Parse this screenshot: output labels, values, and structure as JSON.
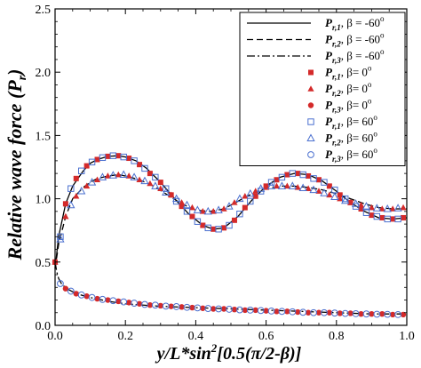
{
  "chart_data": {
    "type": "line",
    "xlabel": "y/L*sin",
    "xlabel_sup": "2",
    "xlabel_rest": "[0.5(π/2-β)]",
    "ylabel": "Relative wave force (P",
    "ylabel_sub": "r",
    "ylabel_end": ")",
    "xlim": [
      0,
      1
    ],
    "ylim": [
      0,
      2.5
    ],
    "xticks": [
      "0.0",
      "0.2",
      "0.4",
      "0.6",
      "0.8",
      "1.0"
    ],
    "yticks": [
      "0.0",
      "0.5",
      "1.0",
      "1.5",
      "2.0",
      "2.5"
    ],
    "legend_position": "top-right",
    "series": [
      {
        "name_main": "P",
        "name_sub": "r,1",
        "name_tail": ", β = -60",
        "name_deg": "o",
        "style": "solid",
        "marker": "none",
        "x": [
          0,
          0.01,
          0.03,
          0.05,
          0.08,
          0.1,
          0.12,
          0.15,
          0.18,
          0.2,
          0.23,
          0.26,
          0.3,
          0.34,
          0.38,
          0.42,
          0.45,
          0.48,
          0.52,
          0.56,
          0.6,
          0.64,
          0.68,
          0.72,
          0.76,
          0.8,
          0.84,
          0.88,
          0.92,
          0.96,
          1.0
        ],
        "y": [
          0.45,
          0.7,
          0.96,
          1.1,
          1.22,
          1.28,
          1.31,
          1.335,
          1.34,
          1.33,
          1.3,
          1.24,
          1.13,
          1.0,
          0.88,
          0.79,
          0.76,
          0.77,
          0.86,
          0.99,
          1.1,
          1.17,
          1.2,
          1.19,
          1.14,
          1.06,
          0.97,
          0.9,
          0.85,
          0.84,
          0.85
        ]
      },
      {
        "name_main": "P",
        "name_sub": "r,2",
        "name_tail": ", β = -60",
        "name_deg": "o",
        "style": "dashed",
        "marker": "none",
        "x": [
          0,
          0.01,
          0.03,
          0.05,
          0.08,
          0.1,
          0.12,
          0.15,
          0.18,
          0.2,
          0.24,
          0.28,
          0.32,
          0.36,
          0.4,
          0.44,
          0.48,
          0.52,
          0.56,
          0.6,
          0.64,
          0.68,
          0.72,
          0.76,
          0.8,
          0.84,
          0.88,
          0.92,
          0.96,
          1.0
        ],
        "y": [
          0.45,
          0.64,
          0.86,
          1.0,
          1.09,
          1.13,
          1.16,
          1.18,
          1.19,
          1.18,
          1.15,
          1.1,
          1.03,
          0.96,
          0.91,
          0.9,
          0.92,
          0.98,
          1.04,
          1.08,
          1.1,
          1.1,
          1.09,
          1.07,
          1.04,
          1.0,
          0.96,
          0.93,
          0.92,
          0.92
        ]
      },
      {
        "name_main": "P",
        "name_sub": "r,3",
        "name_tail": ", β = -60",
        "name_deg": "o",
        "style": "dashdot",
        "marker": "none",
        "x": [
          0,
          0.005,
          0.01,
          0.02,
          0.04,
          0.06,
          0.1,
          0.15,
          0.2,
          0.3,
          0.4,
          0.5,
          0.6,
          0.7,
          0.8,
          0.9,
          1.0
        ],
        "y": [
          0.5,
          0.42,
          0.37,
          0.32,
          0.28,
          0.25,
          0.22,
          0.19,
          0.17,
          0.15,
          0.14,
          0.13,
          0.12,
          0.11,
          0.1,
          0.09,
          0.09
        ]
      },
      {
        "name_main": "P",
        "name_sub": "r,1",
        "name_tail": ", β= 0",
        "name_deg": "o",
        "style": "none",
        "marker": "square-filled",
        "x": [
          0.0,
          0.03,
          0.06,
          0.09,
          0.12,
          0.15,
          0.18,
          0.21,
          0.24,
          0.27,
          0.3,
          0.33,
          0.36,
          0.39,
          0.42,
          0.45,
          0.48,
          0.51,
          0.54,
          0.57,
          0.6,
          0.63,
          0.66,
          0.69,
          0.72,
          0.75,
          0.78,
          0.81,
          0.84,
          0.87,
          0.9,
          0.93,
          0.96,
          0.99
        ],
        "y": [
          0.5,
          0.96,
          1.16,
          1.26,
          1.31,
          1.335,
          1.34,
          1.32,
          1.27,
          1.2,
          1.13,
          1.03,
          0.94,
          0.86,
          0.79,
          0.76,
          0.77,
          0.83,
          0.93,
          1.02,
          1.1,
          1.15,
          1.19,
          1.2,
          1.18,
          1.15,
          1.1,
          1.03,
          0.97,
          0.92,
          0.87,
          0.85,
          0.84,
          0.85
        ]
      },
      {
        "name_main": "P",
        "name_sub": "r,2",
        "name_tail": ", β= 0",
        "name_deg": "o",
        "style": "none",
        "marker": "triangle-filled",
        "x": [
          0.0,
          0.03,
          0.06,
          0.09,
          0.12,
          0.15,
          0.18,
          0.21,
          0.24,
          0.27,
          0.3,
          0.33,
          0.36,
          0.39,
          0.42,
          0.45,
          0.48,
          0.51,
          0.54,
          0.57,
          0.6,
          0.63,
          0.66,
          0.69,
          0.72,
          0.75,
          0.78,
          0.81,
          0.84,
          0.87,
          0.9,
          0.93,
          0.96,
          0.99
        ],
        "y": [
          0.5,
          0.86,
          1.02,
          1.1,
          1.15,
          1.18,
          1.19,
          1.18,
          1.15,
          1.12,
          1.08,
          1.03,
          0.97,
          0.93,
          0.9,
          0.9,
          0.92,
          0.97,
          1.02,
          1.06,
          1.09,
          1.1,
          1.1,
          1.09,
          1.08,
          1.06,
          1.03,
          1.0,
          0.97,
          0.95,
          0.93,
          0.92,
          0.92,
          0.93
        ]
      },
      {
        "name_main": "P",
        "name_sub": "r,3",
        "name_tail": ", β= 0",
        "name_deg": "o",
        "style": "none",
        "marker": "circle-filled",
        "x": [
          0.0,
          0.03,
          0.06,
          0.09,
          0.12,
          0.15,
          0.18,
          0.21,
          0.24,
          0.27,
          0.3,
          0.33,
          0.36,
          0.39,
          0.42,
          0.45,
          0.48,
          0.51,
          0.54,
          0.57,
          0.6,
          0.63,
          0.66,
          0.69,
          0.72,
          0.75,
          0.78,
          0.81,
          0.84,
          0.87,
          0.9,
          0.93,
          0.96,
          0.99
        ],
        "y": [
          0.5,
          0.29,
          0.25,
          0.23,
          0.21,
          0.2,
          0.19,
          0.18,
          0.17,
          0.16,
          0.155,
          0.15,
          0.145,
          0.14,
          0.135,
          0.13,
          0.13,
          0.125,
          0.12,
          0.12,
          0.115,
          0.11,
          0.11,
          0.105,
          0.1,
          0.1,
          0.1,
          0.095,
          0.095,
          0.09,
          0.09,
          0.09,
          0.085,
          0.085
        ]
      },
      {
        "name_main": "P",
        "name_sub": "r,1",
        "name_tail": ", β= 60",
        "name_deg": "o",
        "style": "none",
        "marker": "square-open",
        "x": [
          0.015,
          0.045,
          0.075,
          0.105,
          0.135,
          0.165,
          0.195,
          0.225,
          0.255,
          0.285,
          0.315,
          0.345,
          0.375,
          0.405,
          0.435,
          0.465,
          0.495,
          0.525,
          0.555,
          0.585,
          0.615,
          0.645,
          0.675,
          0.705,
          0.735,
          0.765,
          0.795,
          0.825,
          0.855,
          0.885,
          0.915,
          0.945,
          0.975
        ],
        "y": [
          0.7,
          1.08,
          1.22,
          1.29,
          1.325,
          1.34,
          1.33,
          1.3,
          1.24,
          1.17,
          1.08,
          0.98,
          0.9,
          0.82,
          0.77,
          0.76,
          0.79,
          0.88,
          0.98,
          1.06,
          1.13,
          1.17,
          1.2,
          1.19,
          1.16,
          1.13,
          1.07,
          1.0,
          0.94,
          0.89,
          0.86,
          0.84,
          0.84
        ]
      },
      {
        "name_main": "P",
        "name_sub": "r,2",
        "name_tail": ", β= 60",
        "name_deg": "o",
        "style": "none",
        "marker": "triangle-open",
        "x": [
          0.015,
          0.045,
          0.075,
          0.105,
          0.135,
          0.165,
          0.195,
          0.225,
          0.255,
          0.285,
          0.315,
          0.345,
          0.375,
          0.405,
          0.435,
          0.465,
          0.495,
          0.525,
          0.555,
          0.585,
          0.615,
          0.645,
          0.675,
          0.705,
          0.735,
          0.765,
          0.795,
          0.825,
          0.855,
          0.885,
          0.915,
          0.945,
          0.975
        ],
        "y": [
          0.68,
          0.95,
          1.06,
          1.13,
          1.17,
          1.185,
          1.19,
          1.17,
          1.14,
          1.1,
          1.05,
          1.0,
          0.95,
          0.91,
          0.9,
          0.91,
          0.94,
          1.0,
          1.04,
          1.08,
          1.1,
          1.1,
          1.1,
          1.085,
          1.07,
          1.045,
          1.015,
          0.985,
          0.96,
          0.94,
          0.925,
          0.92,
          0.925
        ]
      },
      {
        "name_main": "P",
        "name_sub": "r,3",
        "name_tail": ", β= 60",
        "name_deg": "o",
        "style": "none",
        "marker": "circle-open",
        "x": [
          0.015,
          0.045,
          0.075,
          0.105,
          0.135,
          0.165,
          0.195,
          0.225,
          0.255,
          0.285,
          0.315,
          0.345,
          0.375,
          0.405,
          0.435,
          0.465,
          0.495,
          0.525,
          0.555,
          0.585,
          0.615,
          0.645,
          0.675,
          0.705,
          0.735,
          0.765,
          0.795,
          0.825,
          0.855,
          0.885,
          0.915,
          0.945,
          0.975
        ],
        "y": [
          0.33,
          0.27,
          0.24,
          0.22,
          0.205,
          0.195,
          0.185,
          0.175,
          0.165,
          0.16,
          0.152,
          0.148,
          0.142,
          0.138,
          0.133,
          0.13,
          0.127,
          0.122,
          0.12,
          0.117,
          0.113,
          0.11,
          0.107,
          0.103,
          0.1,
          0.1,
          0.097,
          0.094,
          0.092,
          0.09,
          0.088,
          0.087,
          0.085
        ]
      }
    ],
    "colors": {
      "lines": "#000000",
      "filled_markers": "#d42a2a",
      "open_markers": "#4a6fcf"
    }
  }
}
